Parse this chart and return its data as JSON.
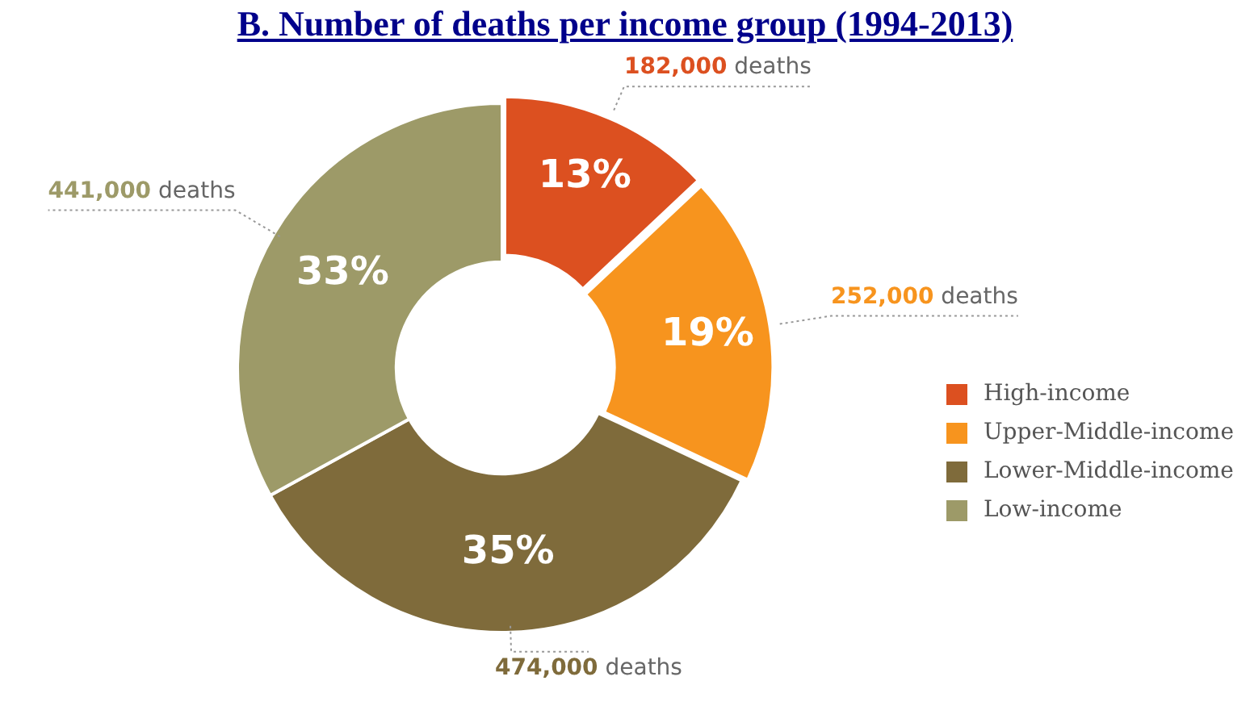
{
  "chart_data": {
    "type": "donut",
    "title": "B. Number of deaths per income group (1994-2013)",
    "categories": [
      "High-income",
      "Upper-Middle-income",
      "Lower-Middle-income",
      "Low-income"
    ],
    "values": [
      13,
      19,
      35,
      33
    ],
    "colors": [
      "#dc5020",
      "#f7941e",
      "#7f6b3b",
      "#9d9a68"
    ],
    "value_labels": [
      "13%",
      "19%",
      "35%",
      "33%"
    ],
    "annotations": [
      "182,000 deaths",
      "252,000 deaths",
      "474,000 deaths",
      "441,000 deaths"
    ],
    "legend": "right"
  }
}
